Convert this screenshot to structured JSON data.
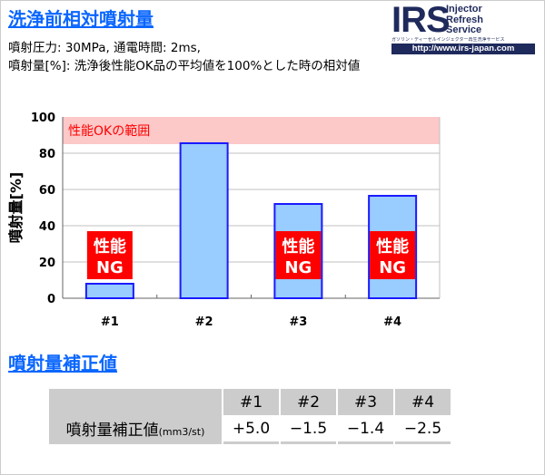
{
  "header": {
    "title": "洗浄前相対噴射量",
    "line1": "噴射圧力: 30MPa, 通電時間: 2ms,",
    "line2": "噴射量[%]: 洗浄後性能OK品の平均値を100%とした時の相対値"
  },
  "logo": {
    "big": "IRS",
    "words": [
      "Injector",
      "Refresh",
      "Service"
    ],
    "tagline": "ガソリン・ディーゼルインジェクター再生洗浄サービス",
    "url": "http://www.irs-japan.com"
  },
  "chart_data": {
    "type": "bar",
    "categories": [
      "#1",
      "#2",
      "#3",
      "#4"
    ],
    "values": [
      8,
      85.5,
      52,
      56.5
    ],
    "ylabel": "噴射量[%]",
    "ylim": [
      0,
      100
    ],
    "yticks": [
      0,
      20,
      40,
      60,
      80,
      100
    ],
    "grid": true,
    "band": {
      "from": 85,
      "to": 100,
      "label": "性能OKの範囲",
      "color": "#fcc8c8"
    },
    "ng_labels": [
      {
        "category": "#1",
        "text": [
          "性能",
          "NG"
        ]
      },
      {
        "category": "#3",
        "text": [
          "性能",
          "NG"
        ]
      },
      {
        "category": "#4",
        "text": [
          "性能",
          "NG"
        ]
      }
    ],
    "bar_fill": "#99ccff",
    "bar_border": "#1a1aff",
    "ng_color": "#ff0000"
  },
  "correction": {
    "title": "噴射量補正値",
    "headers": [
      "#1",
      "#2",
      "#3",
      "#4"
    ],
    "row_label": "噴射量補正値",
    "row_unit": "(mm3/st)",
    "values": [
      "+5.0",
      "−1.5",
      "−1.4",
      "−2.5"
    ]
  }
}
